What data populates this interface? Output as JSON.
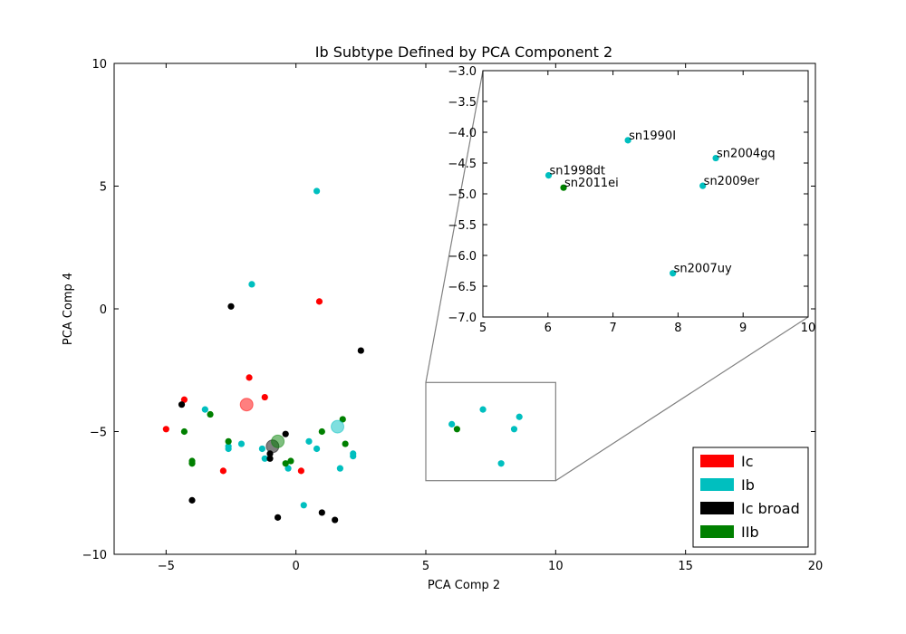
{
  "chart_data": {
    "type": "scatter",
    "title": "Ib Subtype Defined by PCA Component 2",
    "xlabel": "PCA Comp 2",
    "ylabel": "PCA Comp 4",
    "xlim": [
      -7,
      20
    ],
    "ylim": [
      -10,
      10
    ],
    "xticks": [
      "−5",
      "0",
      "5",
      "10",
      "15",
      "20"
    ],
    "xtick_values": [
      -5,
      0,
      5,
      10,
      15,
      20
    ],
    "yticks": [
      "−10",
      "−5",
      "0",
      "5",
      "10"
    ],
    "ytick_values": [
      -10,
      -5,
      0,
      5,
      10
    ],
    "grid": false,
    "legend_position": "lower-right",
    "series": [
      {
        "name": "Ic",
        "color": "#ff0000",
        "points": [
          [
            -5.0,
            -4.9
          ],
          [
            -4.3,
            -3.7
          ],
          [
            -1.8,
            -2.8
          ],
          [
            -1.2,
            -3.6
          ],
          [
            0.9,
            0.3
          ],
          [
            -2.8,
            -6.6
          ],
          [
            0.2,
            -6.6
          ]
        ],
        "centroid": [
          -1.9,
          -3.9
        ]
      },
      {
        "name": "Ib",
        "color": "#00bfbf",
        "points": [
          [
            0.8,
            4.8
          ],
          [
            -1.7,
            1.0
          ],
          [
            -3.5,
            -4.1
          ],
          [
            -2.1,
            -5.5
          ],
          [
            -2.6,
            -5.6
          ],
          [
            -2.6,
            -5.7
          ],
          [
            -1.3,
            -5.7
          ],
          [
            -1.2,
            -6.1
          ],
          [
            -0.3,
            -6.5
          ],
          [
            0.5,
            -5.4
          ],
          [
            0.8,
            -5.7
          ],
          [
            1.7,
            -6.5
          ],
          [
            2.2,
            -5.9
          ],
          [
            2.2,
            -6.0
          ],
          [
            0.3,
            -8.0
          ],
          [
            6.0,
            -4.7
          ],
          [
            7.2,
            -4.1
          ],
          [
            8.6,
            -4.4
          ],
          [
            8.4,
            -4.9
          ],
          [
            7.9,
            -6.3
          ]
        ],
        "centroid": [
          1.6,
          -4.8
        ]
      },
      {
        "name": "Ic broad",
        "color": "#000000",
        "points": [
          [
            -2.5,
            0.1
          ],
          [
            -4.4,
            -3.9
          ],
          [
            -0.4,
            -5.1
          ],
          [
            -1.0,
            -5.9
          ],
          [
            -1.0,
            -6.1
          ],
          [
            -4.0,
            -7.8
          ],
          [
            -0.7,
            -8.5
          ],
          [
            1.0,
            -8.3
          ],
          [
            1.5,
            -8.6
          ],
          [
            2.5,
            -1.7
          ]
        ],
        "centroid": [
          -0.9,
          -5.6
        ]
      },
      {
        "name": "IIb",
        "color": "#008000",
        "points": [
          [
            -4.3,
            -5.0
          ],
          [
            -3.3,
            -4.3
          ],
          [
            -2.6,
            -5.4
          ],
          [
            -4.0,
            -6.2
          ],
          [
            -4.0,
            -6.3
          ],
          [
            -0.4,
            -6.3
          ],
          [
            -0.2,
            -6.2
          ],
          [
            1.0,
            -5.0
          ],
          [
            1.8,
            -4.5
          ],
          [
            1.9,
            -5.5
          ],
          [
            6.2,
            -4.9
          ]
        ],
        "centroid": [
          -0.7,
          -5.4
        ]
      }
    ],
    "inset": {
      "xlim": [
        5,
        10
      ],
      "ylim": [
        -7.0,
        -3.0
      ],
      "xticks": [
        "5",
        "6",
        "7",
        "8",
        "9",
        "10"
      ],
      "xtick_values": [
        5,
        6,
        7,
        8,
        9,
        10
      ],
      "yticks": [
        "−3.0",
        "−3.5",
        "−4.0",
        "−4.5",
        "−5.0",
        "−5.5",
        "−6.0",
        "−6.5",
        "−7.0"
      ],
      "ytick_values": [
        -3.0,
        -3.5,
        -4.0,
        -4.5,
        -5.0,
        -5.5,
        -6.0,
        -6.5,
        -7.0
      ],
      "points": [
        {
          "label": "sn1990I",
          "x": 7.23,
          "y": -4.13,
          "series": "Ib"
        },
        {
          "label": "sn2004gq",
          "x": 8.58,
          "y": -4.42,
          "series": "Ib"
        },
        {
          "label": "sn1998dt",
          "x": 6.01,
          "y": -4.7,
          "series": "Ib"
        },
        {
          "label": "sn2011ei",
          "x": 6.24,
          "y": -4.9,
          "series": "IIb"
        },
        {
          "label": "sn2009er",
          "x": 8.38,
          "y": -4.87,
          "series": "Ib"
        },
        {
          "label": "sn2007uy",
          "x": 7.92,
          "y": -6.29,
          "series": "Ib"
        }
      ]
    },
    "zoom_region": {
      "x": [
        5,
        10
      ],
      "y": [
        -7.0,
        -3.0
      ]
    }
  }
}
